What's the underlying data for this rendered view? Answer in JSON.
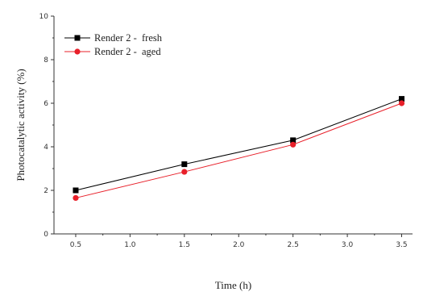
{
  "chart_data": {
    "type": "line",
    "title": "",
    "xlabel": "Time (h)",
    "ylabel": "Photocatalytic activity (%)",
    "xlim": [
      0.3,
      3.6
    ],
    "ylim": [
      0,
      10
    ],
    "x_ticks": [
      "0.5",
      "1.0",
      "1.5",
      "2.0",
      "2.5",
      "3.0",
      "3.5"
    ],
    "y_ticks": [
      "0",
      "2",
      "4",
      "6",
      "8",
      "10"
    ],
    "grid": false,
    "legend_position": "top-left",
    "series": [
      {
        "name": "Render 2 -  fresh",
        "marker": "square",
        "color": "#000000",
        "x": [
          0.5,
          1.5,
          2.5,
          3.5
        ],
        "y": [
          2.0,
          3.2,
          4.3,
          6.2
        ]
      },
      {
        "name": "Render 2 -  aged",
        "marker": "circle",
        "color": "#e8202a",
        "x": [
          0.5,
          1.5,
          2.5,
          3.5
        ],
        "y": [
          1.65,
          2.85,
          4.1,
          6.0
        ]
      }
    ]
  }
}
